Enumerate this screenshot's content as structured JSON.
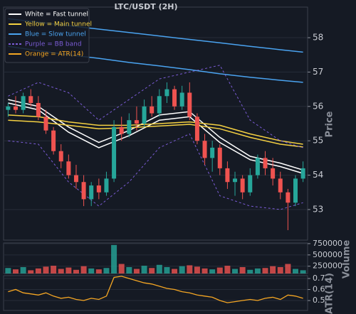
{
  "chart_data": [
    {
      "type": "candlestick",
      "title": "LTC/USDT (2H)",
      "y_label": "Price",
      "x": [
        0,
        1,
        2,
        3,
        4,
        5,
        6,
        7,
        8,
        9,
        10,
        11,
        12,
        13,
        14,
        15,
        16,
        17,
        18,
        19,
        20,
        21,
        22,
        23,
        24,
        25,
        26,
        27,
        28,
        29,
        30,
        31,
        32,
        33,
        34,
        35,
        36,
        37,
        38,
        39
      ],
      "open": [
        55.9,
        56.0,
        55.9,
        56.3,
        56.1,
        55.7,
        55.3,
        54.7,
        54.4,
        54.0,
        53.8,
        53.3,
        53.7,
        53.5,
        53.9,
        55.4,
        55.2,
        55.6,
        55.5,
        56.0,
        55.8,
        56.3,
        56.5,
        56.0,
        56.4,
        55.7,
        55.0,
        54.5,
        54.8,
        54.2,
        53.8,
        53.9,
        53.5,
        54.0,
        54.5,
        54.2,
        53.9,
        53.5,
        53.2,
        53.9
      ],
      "high": [
        56.1,
        56.3,
        56.4,
        56.5,
        56.3,
        55.9,
        55.4,
        54.9,
        54.6,
        54.3,
        54.0,
        53.8,
        53.9,
        54.1,
        55.6,
        55.7,
        55.8,
        56.0,
        56.2,
        56.3,
        56.5,
        56.7,
        56.6,
        56.6,
        56.7,
        55.8,
        55.2,
        55.0,
        54.9,
        54.4,
        54.1,
        54.0,
        54.2,
        54.6,
        54.7,
        54.5,
        54.1,
        53.6,
        54.0,
        54.4
      ],
      "low": [
        55.7,
        55.8,
        55.8,
        56.0,
        55.6,
        55.2,
        54.6,
        54.2,
        53.9,
        53.6,
        53.1,
        53.1,
        53.3,
        53.4,
        53.8,
        55.0,
        55.1,
        55.3,
        55.4,
        55.7,
        55.7,
        56.1,
        55.9,
        55.9,
        55.6,
        54.9,
        54.3,
        54.1,
        54.0,
        53.6,
        53.4,
        53.3,
        53.4,
        53.9,
        54.0,
        53.7,
        53.3,
        52.4,
        53.1,
        53.8
      ],
      "close": [
        56.0,
        55.9,
        56.3,
        56.1,
        55.7,
        55.3,
        54.7,
        54.4,
        54.0,
        53.8,
        53.3,
        53.7,
        53.5,
        53.9,
        55.4,
        55.2,
        55.6,
        55.5,
        56.0,
        55.8,
        56.3,
        56.5,
        56.0,
        56.4,
        55.7,
        55.0,
        54.5,
        54.8,
        54.2,
        53.8,
        53.9,
        53.5,
        54.0,
        54.5,
        54.2,
        53.9,
        53.5,
        53.2,
        53.9,
        54.2
      ],
      "up_color": "#26a69a",
      "down_color": "#ef5350",
      "series": [
        {
          "name": "White = Fast tunnel",
          "color": "#ffffff",
          "x": [
            0,
            4,
            8,
            12,
            16,
            20,
            24,
            28,
            32,
            36,
            39
          ],
          "upper": [
            56.2,
            56.0,
            55.4,
            54.95,
            55.3,
            55.75,
            55.85,
            55.1,
            54.55,
            54.35,
            54.15
          ],
          "lower": [
            56.1,
            55.9,
            55.25,
            54.8,
            55.15,
            55.6,
            55.7,
            54.95,
            54.45,
            54.25,
            54.05
          ]
        },
        {
          "name": "Yellow = Main tunnel",
          "color": "#f5d142",
          "x": [
            0,
            4,
            8,
            12,
            16,
            20,
            24,
            28,
            32,
            36,
            39
          ],
          "upper": [
            55.75,
            55.7,
            55.55,
            55.45,
            55.45,
            55.5,
            55.55,
            55.45,
            55.2,
            55.0,
            54.9
          ],
          "lower": [
            55.6,
            55.55,
            55.45,
            55.35,
            55.38,
            55.43,
            55.48,
            55.35,
            55.1,
            54.9,
            54.82
          ]
        },
        {
          "name": "Blue = Slow tunnel",
          "color": "#4aa3f0",
          "x": [
            0,
            4,
            8,
            12,
            16,
            20,
            24,
            28,
            32,
            36,
            39
          ],
          "upper": [
            58.55,
            58.45,
            58.35,
            58.25,
            58.15,
            58.05,
            57.95,
            57.85,
            57.75,
            57.65,
            57.58
          ],
          "lower": [
            57.75,
            57.62,
            57.5,
            57.4,
            57.28,
            57.18,
            57.07,
            56.95,
            56.85,
            56.76,
            56.7
          ]
        },
        {
          "name": "Purple = BB band",
          "color": "#7b5cd6",
          "dashed": true,
          "x": [
            0,
            4,
            8,
            12,
            16,
            20,
            24,
            28,
            32,
            36,
            39
          ],
          "upper": [
            56.3,
            56.7,
            56.4,
            55.6,
            56.2,
            56.8,
            57.0,
            57.2,
            55.6,
            55.0,
            54.8
          ],
          "lower": [
            55.0,
            54.9,
            53.8,
            53.1,
            53.8,
            54.8,
            55.2,
            53.4,
            53.1,
            53.0,
            53.2
          ]
        }
      ],
      "xlim": [
        -0.6,
        39.6
      ],
      "ylim": [
        52.11,
        58.89
      ],
      "yticks": [
        53,
        54,
        55,
        56,
        57,
        58
      ],
      "grid": true,
      "legend": "upper left"
    },
    {
      "type": "bar",
      "y_label": "Volume",
      "values": [
        210000,
        180000,
        230000,
        160000,
        200000,
        240000,
        260000,
        190000,
        220000,
        170000,
        250000,
        200000,
        180000,
        210000,
        720000,
        300000,
        230000,
        190000,
        260000,
        210000,
        280000,
        230000,
        190000,
        250000,
        270000,
        240000,
        200000,
        180000,
        220000,
        260000,
        190000,
        230000,
        170000,
        200000,
        210000,
        250000,
        230000,
        300000,
        190000,
        160000
      ],
      "xlim": [
        -0.6,
        39.6
      ],
      "ylim": [
        88000,
        765000
      ],
      "yticks": [
        250000,
        500000,
        750000
      ],
      "grid": true
    },
    {
      "type": "line",
      "y_label": "ATR(14)",
      "series": [
        {
          "name": "Orange = ATR(14)",
          "color": "#f5a623",
          "values": [
            0.58,
            0.6,
            0.57,
            0.56,
            0.55,
            0.57,
            0.54,
            0.52,
            0.53,
            0.51,
            0.5,
            0.52,
            0.51,
            0.54,
            0.71,
            0.72,
            0.7,
            0.68,
            0.66,
            0.65,
            0.63,
            0.61,
            0.6,
            0.58,
            0.57,
            0.55,
            0.54,
            0.53,
            0.5,
            0.48,
            0.49,
            0.5,
            0.51,
            0.5,
            0.52,
            0.53,
            0.51,
            0.55,
            0.54,
            0.52
          ]
        }
      ],
      "x": [
        0,
        1,
        2,
        3,
        4,
        5,
        6,
        7,
        8,
        9,
        10,
        11,
        12,
        13,
        14,
        15,
        16,
        17,
        18,
        19,
        20,
        21,
        22,
        23,
        24,
        25,
        26,
        27,
        28,
        29,
        30,
        31,
        32,
        33,
        34,
        35,
        36,
        37,
        38,
        39
      ],
      "xlim": [
        -0.6,
        39.6
      ],
      "ylim": [
        0.41,
        0.726
      ],
      "yticks": [
        0.5,
        0.6,
        0.7
      ],
      "grid": true
    }
  ]
}
